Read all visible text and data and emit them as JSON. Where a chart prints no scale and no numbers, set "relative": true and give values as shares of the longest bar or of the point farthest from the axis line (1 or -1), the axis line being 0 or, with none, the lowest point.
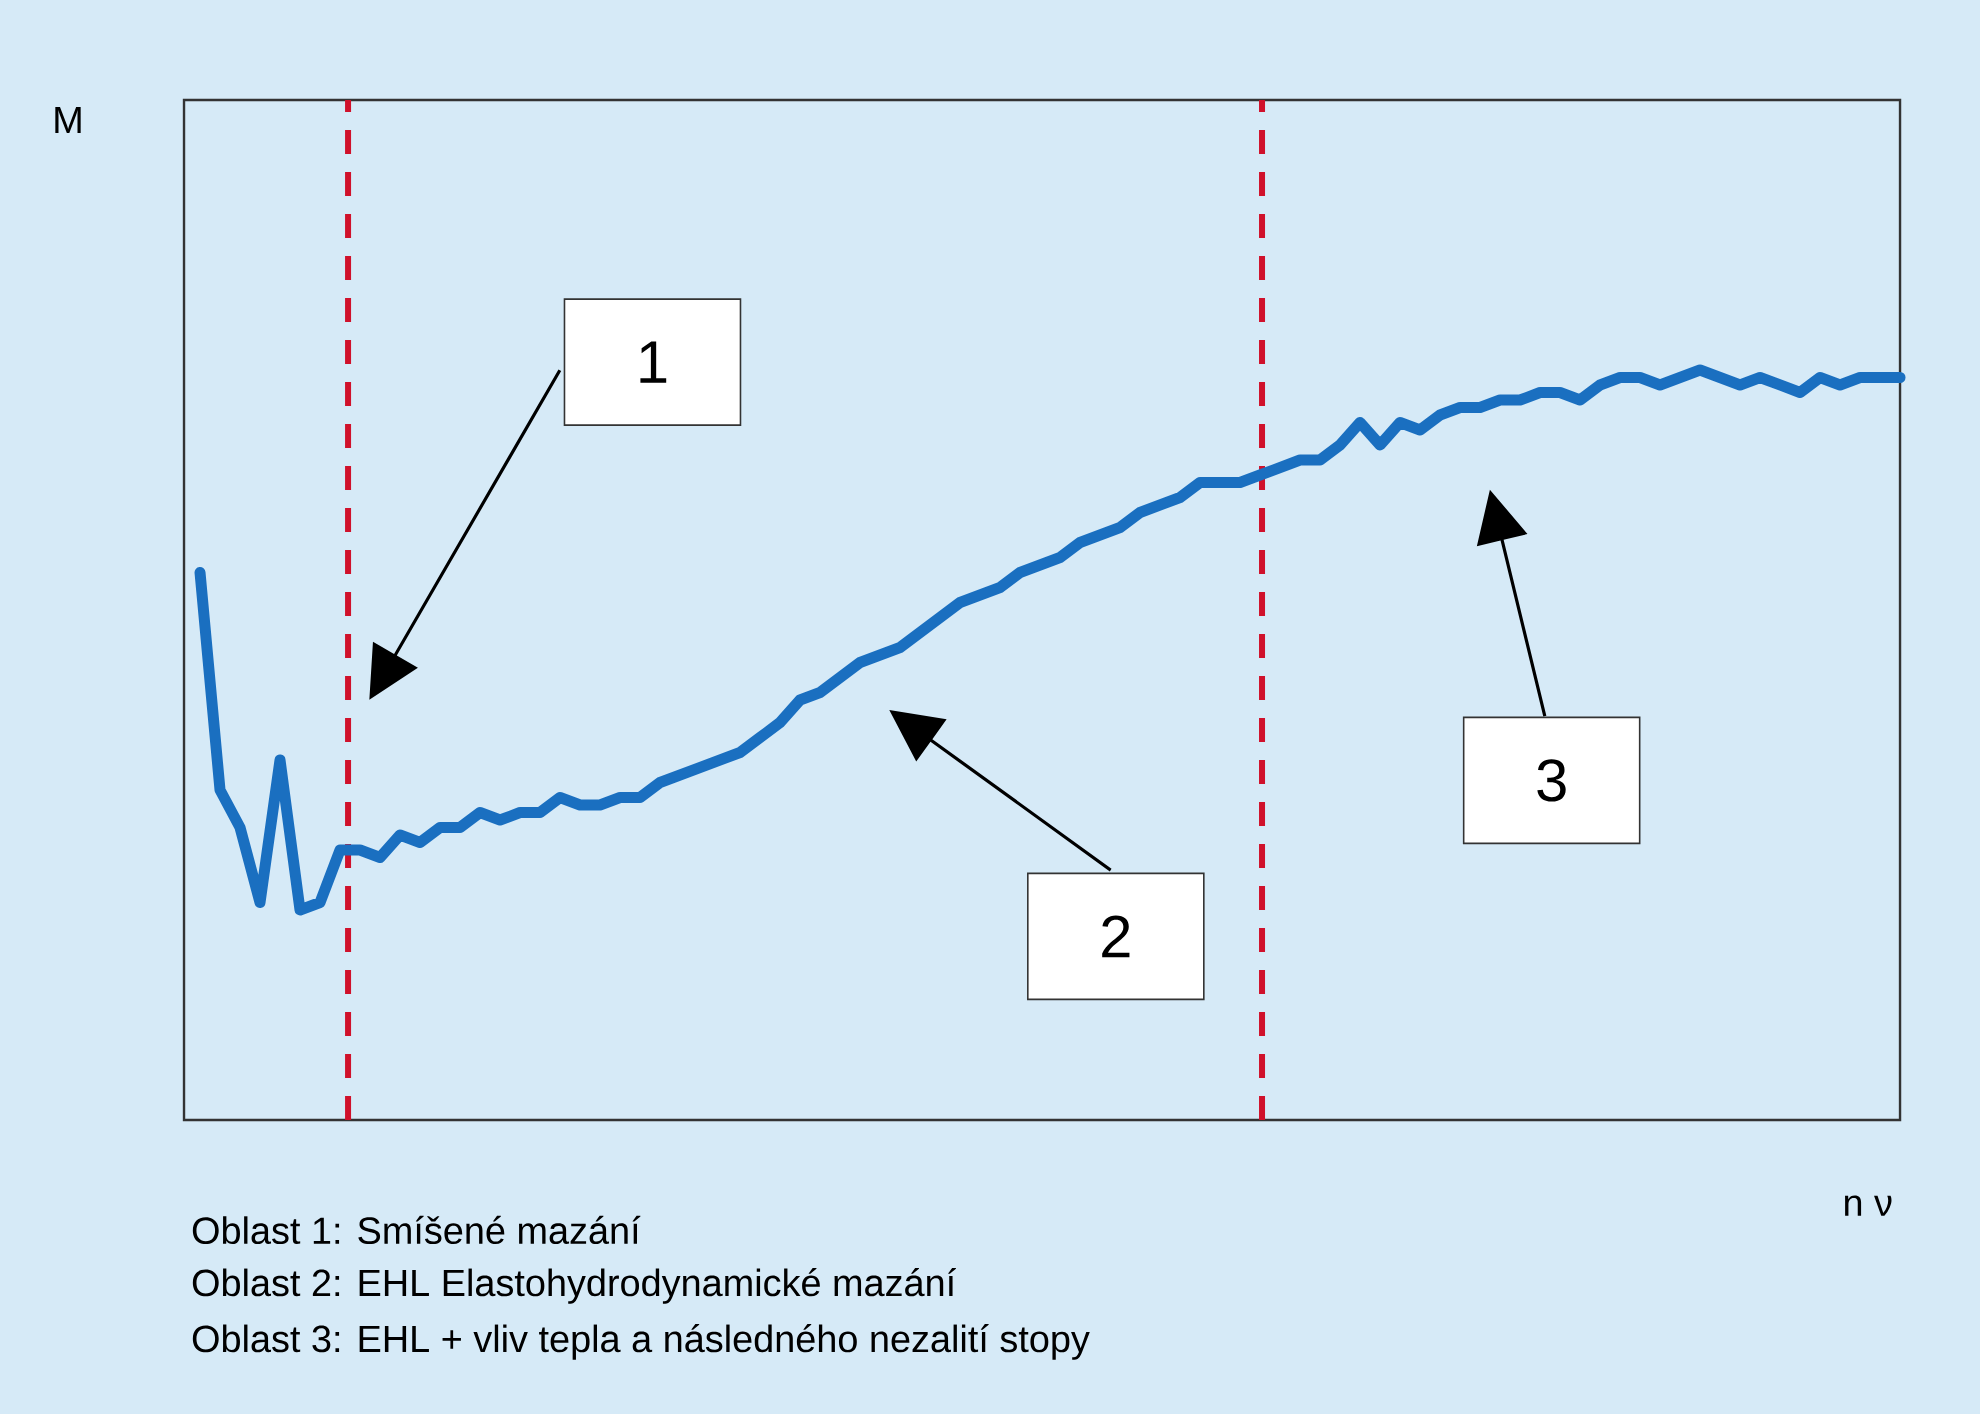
{
  "chart_data": {
    "type": "line",
    "relative": true,
    "color": "#1a6fc0",
    "xlabel": "n ν",
    "categories": [
      null,
      null,
      null,
      null,
      null,
      null,
      null,
      null,
      null,
      null,
      null,
      null,
      null,
      null,
      null,
      null,
      null,
      null,
      null,
      null,
      null,
      null,
      null,
      null,
      null,
      null,
      null,
      null,
      null,
      null,
      null,
      null,
      null,
      null,
      null,
      null,
      null,
      null,
      null,
      null,
      null,
      null,
      null,
      null,
      null,
      null,
      null,
      null,
      null,
      null,
      null,
      null,
      null,
      null,
      null,
      null,
      null,
      null,
      null,
      null,
      null,
      null,
      null,
      null,
      null,
      null,
      null,
      null,
      null,
      null,
      null,
      null,
      null,
      null,
      null,
      null,
      null,
      null,
      null,
      null,
      null,
      null,
      null,
      null,
      null,
      null
    ],
    "values": [
      0.73,
      0.44,
      0.39,
      0.29,
      0.48,
      0.28,
      0.29,
      0.36,
      0.36,
      0.35,
      0.38,
      0.37,
      0.39,
      0.39,
      0.41,
      0.4,
      0.41,
      0.41,
      0.43,
      0.42,
      0.42,
      0.43,
      0.43,
      0.45,
      0.46,
      0.47,
      0.48,
      0.49,
      0.51,
      0.53,
      0.56,
      0.57,
      0.59,
      0.61,
      0.62,
      0.63,
      0.65,
      0.67,
      0.69,
      0.7,
      0.71,
      0.73,
      0.74,
      0.75,
      0.77,
      0.78,
      0.79,
      0.81,
      0.82,
      0.83,
      0.85,
      0.85,
      0.85,
      0.86,
      0.87,
      0.88,
      0.88,
      0.9,
      0.93,
      0.9,
      0.93,
      0.92,
      0.94,
      0.95,
      0.95,
      0.96,
      0.96,
      0.97,
      0.97,
      0.96,
      0.98,
      0.99,
      0.99,
      0.98,
      0.99,
      1.0,
      0.99,
      0.98,
      0.99,
      0.98,
      0.97,
      0.99,
      0.98,
      0.99,
      0.99,
      0.99
    ],
    "annotations": [
      "1",
      "2",
      "3",
      "Oblast 1: Smíšené mazání",
      "Oblast 2: EHL Elastohydrodynamické mazání",
      "Oblast 3: EHL + vliv tepla a následného nezalití stopy",
      "M"
    ]
  }
}
